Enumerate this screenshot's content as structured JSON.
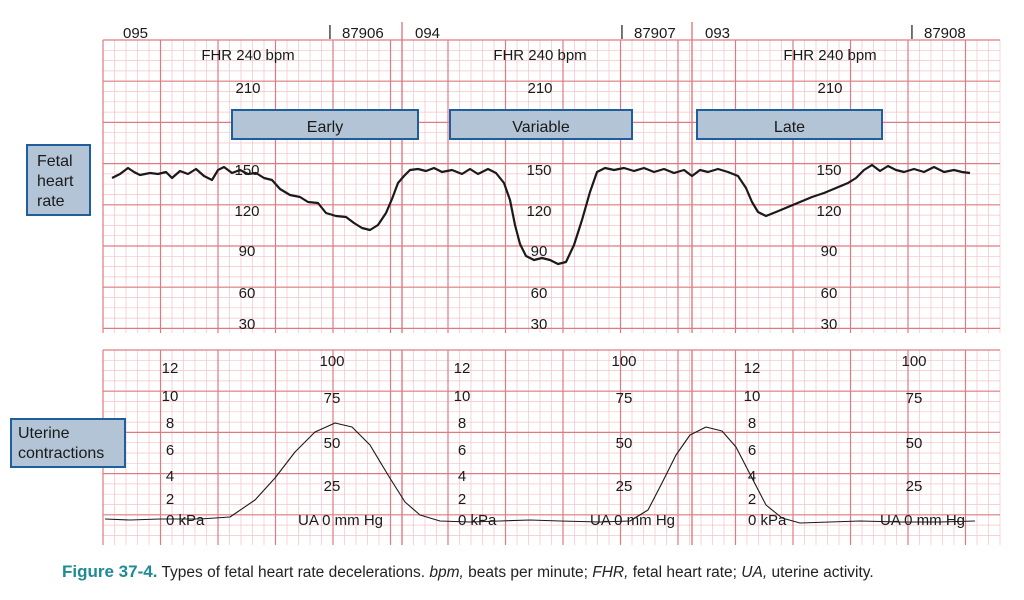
{
  "colors": {
    "grid_major": "#e07a82",
    "grid_minor": "#f4c3c7",
    "label_fill": "#b3c4d6",
    "label_stroke": "#1f5e9c",
    "trace": "#1a1a1a",
    "caption_accent": "#1f8a96"
  },
  "fhr_panel": {
    "side_label": [
      "Fetal",
      "heart",
      "rate"
    ],
    "segments": [
      {
        "id": "095",
        "number": "87906",
        "fhr": "FHR 240 bpm",
        "top_value": "210",
        "pattern": "Early",
        "scale": [
          "150",
          "120",
          "90",
          "60",
          "30"
        ]
      },
      {
        "id": "094",
        "number": "87907",
        "fhr": "FHR 240 bpm",
        "top_value": "210",
        "pattern": "Variable",
        "scale": [
          "150",
          "120",
          "90",
          "60",
          "30"
        ]
      },
      {
        "id": "093",
        "number": "87908",
        "fhr": "FHR 240 bpm",
        "top_value": "210",
        "pattern": "Late",
        "scale": [
          "150",
          "120",
          "90",
          "60",
          "30"
        ]
      }
    ]
  },
  "ua_panel": {
    "side_label": [
      "Uterine",
      "contractions"
    ],
    "segments": [
      {
        "kpa_scale": [
          "12",
          "10",
          "8",
          "6",
          "4",
          "2"
        ],
        "kpa_zero": "0 kPa",
        "mmhg_scale": [
          "100",
          "75",
          "50",
          "25"
        ],
        "mmhg_zero": "UA 0 mm Hg"
      },
      {
        "kpa_scale": [
          "12",
          "10",
          "8",
          "6",
          "4",
          "2"
        ],
        "kpa_zero": "0 kPa",
        "mmhg_scale": [
          "100",
          "75",
          "50",
          "25"
        ],
        "mmhg_zero": "UA 0 mm Hg"
      },
      {
        "kpa_scale": [
          "12",
          "10",
          "8",
          "6",
          "4",
          "2"
        ],
        "kpa_zero": "0 kPa",
        "mmhg_scale": [
          "100",
          "75",
          "50",
          "25"
        ],
        "mmhg_zero": "UA 0 mm Hg"
      }
    ]
  },
  "caption": {
    "number": "Figure 37-4.",
    "parts": [
      {
        "text": " Types of fetal heart rate decelerations. ",
        "italic": false
      },
      {
        "text": "bpm,",
        "italic": true
      },
      {
        "text": " beats per minute; ",
        "italic": false
      },
      {
        "text": "FHR,",
        "italic": true
      },
      {
        "text": " fetal heart rate; ",
        "italic": false
      },
      {
        "text": "UA,",
        "italic": true
      },
      {
        "text": " uterine activity.",
        "italic": false
      }
    ]
  }
}
